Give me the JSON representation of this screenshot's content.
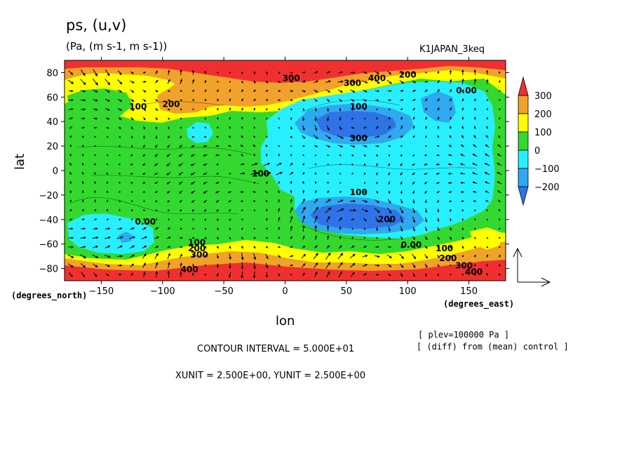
{
  "header": {
    "title": "ps, (u,v)",
    "units": "(Pa, (m s-1, m s-1))",
    "run_name": "K1JAPAN_3keq"
  },
  "axes": {
    "xlabel": "lon",
    "ylabel": "lat",
    "x_unit_label": "(degrees_east)",
    "y_unit_label": "(degrees_north)"
  },
  "footer": {
    "plev": "[ plev=100000 Pa ]",
    "diff": "[ (diff) from (mean) control ]",
    "contour_interval": "CONTOUR INTERVAL = 5.000E+01",
    "vector_units": "XUNIT = 2.500E+00, YUNIT = 2.500E+00"
  },
  "colors": {
    "c_neg300": "#2f73e6",
    "c_neg200": "#2fa9f0",
    "c_neg100": "#26f0ff",
    "c_0": "#33d92f",
    "c_100": "#ffff00",
    "c_200": "#f0a22a",
    "c_300": "#f03030"
  },
  "chart_data": {
    "type": "heatmap",
    "title": "ps, (u,v)",
    "units": "(Pa, (m s-1, m s-1))",
    "xlabel": "lon",
    "ylabel": "lat",
    "xlim": [
      -180,
      180
    ],
    "ylim": [
      -90,
      90
    ],
    "xticks": [
      -150,
      -100,
      -50,
      0,
      50,
      100,
      150
    ],
    "yticks": [
      -80,
      -60,
      -40,
      -20,
      0,
      20,
      40,
      60,
      80
    ],
    "colorbar": {
      "levels": [
        -200,
        -100,
        0,
        100,
        200,
        300
      ],
      "labels": [
        "300",
        "200",
        "100",
        "0",
        "−100",
        "−200"
      ]
    },
    "contour_interval": 50,
    "contour_labels": [
      {
        "text": "100",
        "lon": -120,
        "lat": 50
      },
      {
        "text": "200",
        "lon": -93,
        "lat": 52
      },
      {
        "text": "300",
        "lon": 5,
        "lat": 73
      },
      {
        "text": "300",
        "lon": 55,
        "lat": 69
      },
      {
        "text": "400",
        "lon": 75,
        "lat": 73
      },
      {
        "text": "200",
        "lon": 100,
        "lat": 76
      },
      {
        "text": "100",
        "lon": 60,
        "lat": 50
      },
      {
        "text": "0.00",
        "lon": 148,
        "lat": 63
      },
      {
        "text": "100",
        "lon": -20,
        "lat": -5
      },
      {
        "text": "300",
        "lon": 60,
        "lat": 24
      },
      {
        "text": "100",
        "lon": 60,
        "lat": -20
      },
      {
        "text": "200",
        "lon": 83,
        "lat": -42
      },
      {
        "text": "0.00",
        "lon": -114,
        "lat": -44
      },
      {
        "text": "100",
        "lon": -72,
        "lat": -61
      },
      {
        "text": "200",
        "lon": -72,
        "lat": -66
      },
      {
        "text": "300",
        "lon": -70,
        "lat": -71
      },
      {
        "text": "400",
        "lon": -78,
        "lat": -83
      },
      {
        "text": "0.00",
        "lon": 103,
        "lat": -63
      },
      {
        "text": "100",
        "lon": 130,
        "lat": -66
      },
      {
        "text": "200",
        "lon": 133,
        "lat": -74
      },
      {
        "text": "300",
        "lon": 146,
        "lat": -80
      },
      {
        "text": "400",
        "lon": 154,
        "lat": -85
      }
    ],
    "vector_field": {
      "variables": [
        "u",
        "v"
      ],
      "xunit": 2.5,
      "yunit": 2.5
    }
  }
}
